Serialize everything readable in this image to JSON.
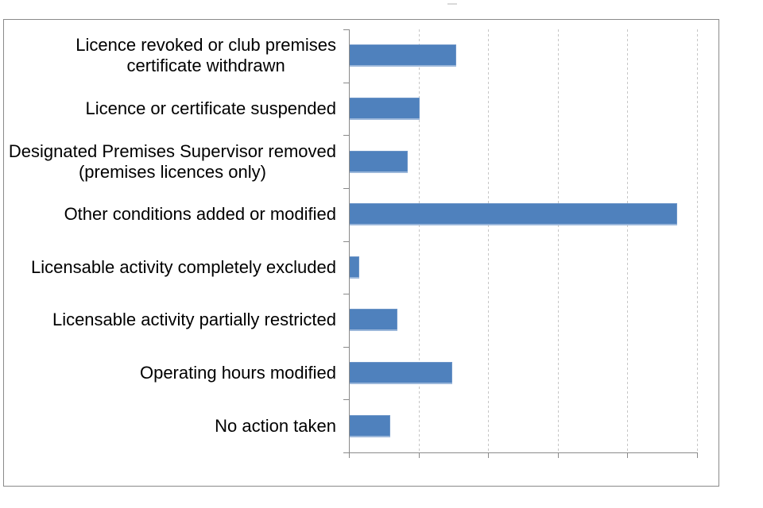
{
  "chart_data": {
    "type": "bar",
    "orientation": "horizontal",
    "title": "",
    "xlabel": "",
    "ylabel": "",
    "xlim": [
      0,
      500
    ],
    "x_ticks": [
      "0",
      "100",
      "200",
      "300",
      "400",
      "500"
    ],
    "grid": "vertical-dashed",
    "legend": "none",
    "categories": [
      "Licence revoked or club premises certificate withdrawn",
      "Licence or certificate suspended",
      "Designated Premises Supervisor removed (premises licences only)",
      "Other conditions added or modified",
      "Licensable activity completely excluded",
      "Licensable activity partially restricted",
      "Operating hours modified",
      "No action taken"
    ],
    "category_label_lines": [
      [
        "Licence revoked or club premises",
        "certificate withdrawn"
      ],
      [
        "Licence or certificate suspended"
      ],
      [
        "Designated Premises Supervisor removed",
        "(premises licences only)"
      ],
      [
        "Other conditions added or modified"
      ],
      [
        "Licensable activity completely excluded"
      ],
      [
        "Licensable activity partially restricted"
      ],
      [
        "Operating hours modified"
      ],
      [
        "No action taken"
      ]
    ],
    "values": [
      153,
      100,
      83,
      471,
      14,
      69,
      147,
      58
    ],
    "colors": {
      "bar_fill": "#4f81bd",
      "bar_edge_highlight": "#9bb7da",
      "gridline": "#c6c6c6",
      "axis_line": "#8a8a8a",
      "frame_border": "#8a8a8a",
      "text": "#000000",
      "title_remnant": "#d9d9d9"
    }
  }
}
